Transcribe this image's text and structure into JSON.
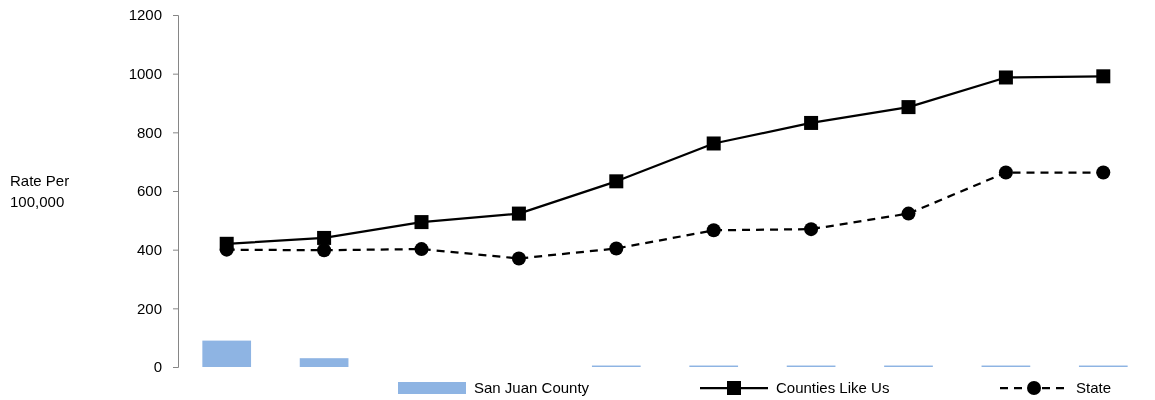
{
  "chart_data": {
    "type": "bar",
    "ylabel": "Rate Per 100,000",
    "categories": [
      null,
      null,
      null,
      null,
      null,
      null,
      null,
      null,
      null,
      null
    ],
    "ylim": [
      0,
      1200
    ],
    "yticks": [
      0,
      200,
      400,
      600,
      800,
      1000,
      1200
    ],
    "legend": "bottom",
    "series": [
      {
        "name": "San Juan County",
        "color": "#8eb4e3",
        "values": [
          90,
          30,
          null,
          null,
          5,
          5,
          5,
          5,
          5,
          5
        ]
      },
      {
        "name": "Counties Like Us",
        "type": "line",
        "color": "#000000",
        "marker": "square",
        "line_style": "solid",
        "values": [
          420,
          440,
          494,
          523,
          633,
          762,
          832,
          886,
          987,
          991
        ]
      },
      {
        "name": "State",
        "type": "line",
        "color": "#000000",
        "marker": "circle",
        "line_style": "dashed",
        "values": [
          400,
          398,
          402,
          370,
          404,
          466,
          470,
          523,
          663,
          663
        ]
      }
    ]
  }
}
